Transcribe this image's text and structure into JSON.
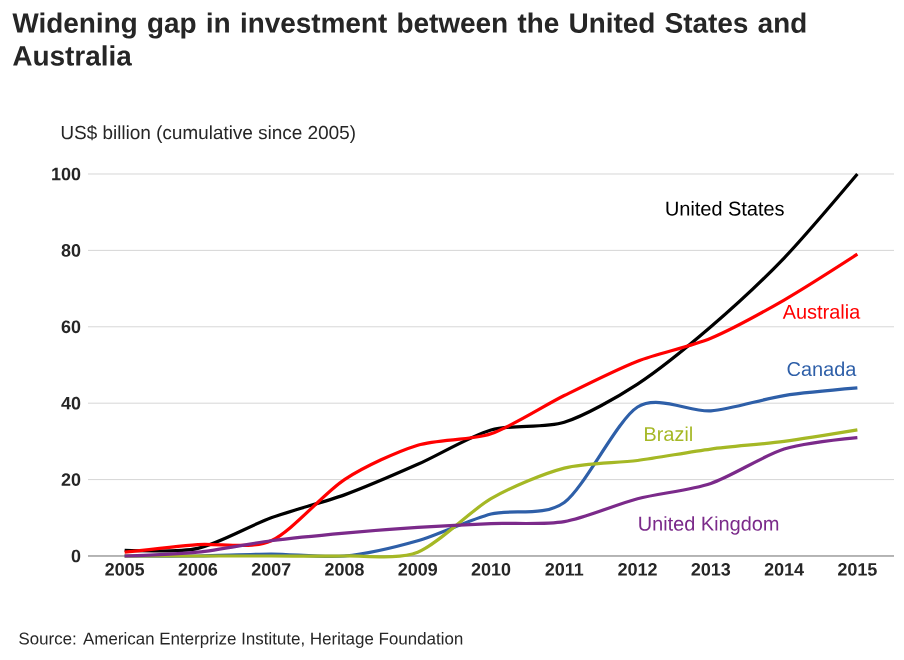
{
  "chart_data": {
    "type": "line",
    "title": "Widening gap in investment between the United States and Australia",
    "ylabel": "US$ billion (cumulative since 2005)",
    "categories": [
      "2005",
      "2006",
      "2007",
      "2008",
      "2009",
      "2010",
      "2011",
      "2012",
      "2013",
      "2014",
      "2015"
    ],
    "series": [
      {
        "name": "United States",
        "color": "#000000",
        "values": [
          1.5,
          2,
          10,
          16,
          24,
          33,
          35,
          45,
          60,
          78,
          100
        ]
      },
      {
        "name": "Australia",
        "color": "#ff0000",
        "values": [
          1,
          3,
          4,
          20,
          29,
          32,
          42,
          51,
          57,
          67,
          79
        ]
      },
      {
        "name": "Canada",
        "color": "#2e5fa8",
        "values": [
          0,
          0,
          0.5,
          0,
          4,
          11,
          14,
          39,
          38,
          42,
          44
        ]
      },
      {
        "name": "Brazil",
        "color": "#a5b825",
        "values": [
          0,
          0,
          0,
          0,
          1,
          15,
          23,
          25,
          28,
          30,
          33
        ]
      },
      {
        "name": "United Kingdom",
        "color": "#7b2a8a",
        "values": [
          0,
          1,
          4,
          6,
          7.5,
          8.5,
          9,
          15,
          19,
          28,
          31
        ]
      }
    ],
    "ylim": [
      0,
      100
    ],
    "yticks": [
      0,
      20,
      40,
      60,
      80,
      100
    ],
    "grid": "y",
    "marker": "none",
    "line_style": "solid",
    "annotations": [
      "Source: American Enterprize Institute, Heritage Foundation"
    ]
  }
}
